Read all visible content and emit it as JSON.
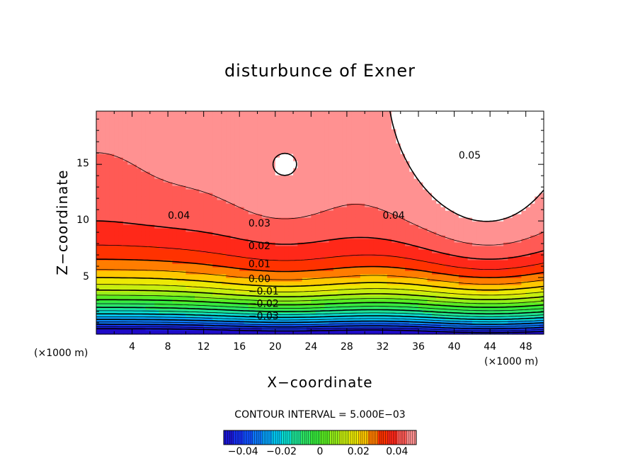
{
  "chart_data": {
    "type": "contour",
    "title": "disturbunce of Exner",
    "xlabel": "X−coordinate",
    "ylabel": "Z−coordinate",
    "x_unit_left": "(×1000 m)",
    "x_unit_right": "(×1000 m)",
    "xlim": [
      0,
      50
    ],
    "ylim": [
      0,
      19.7
    ],
    "x_ticks": [
      "4",
      "8",
      "12",
      "16",
      "20",
      "24",
      "28",
      "32",
      "36",
      "40",
      "44",
      "48"
    ],
    "x_tick_values": [
      4,
      8,
      12,
      16,
      20,
      24,
      28,
      32,
      36,
      40,
      44,
      48
    ],
    "y_ticks": [
      "5",
      "10",
      "15"
    ],
    "y_tick_values": [
      5,
      10,
      15
    ],
    "contour_interval_text": "CONTOUR INTERVAL = 5.000E−03",
    "contour_interval": 0.005,
    "value_range": [
      -0.05,
      0.05
    ],
    "negative_contours": "dashed",
    "contour_labels": [
      {
        "text": "0.05",
        "x": 40.5,
        "z": 15.5
      },
      {
        "text": "0.04",
        "x": 8,
        "z": 10.2
      },
      {
        "text": "0.04",
        "x": 32,
        "z": 10.2
      },
      {
        "text": "0.03",
        "x": 17,
        "z": 9.5
      },
      {
        "text": "0.02",
        "x": 17,
        "z": 7.5
      },
      {
        "text": "0.01",
        "x": 17,
        "z": 5.9
      },
      {
        "text": "0.00",
        "x": 17,
        "z": 4.6
      },
      {
        "text": "−0.01",
        "x": 17,
        "z": 3.5
      },
      {
        "text": "−0.02",
        "x": 17,
        "z": 2.4
      },
      {
        "text": "−0.03",
        "x": 17,
        "z": 1.3
      }
    ],
    "colorbar": {
      "ticks": [
        "−0.04",
        "−0.02",
        "0",
        "0.02",
        "0.04"
      ],
      "tick_values": [
        -0.04,
        -0.02,
        0,
        0.02,
        0.04
      ],
      "range": [
        -0.05,
        0.05
      ]
    }
  }
}
